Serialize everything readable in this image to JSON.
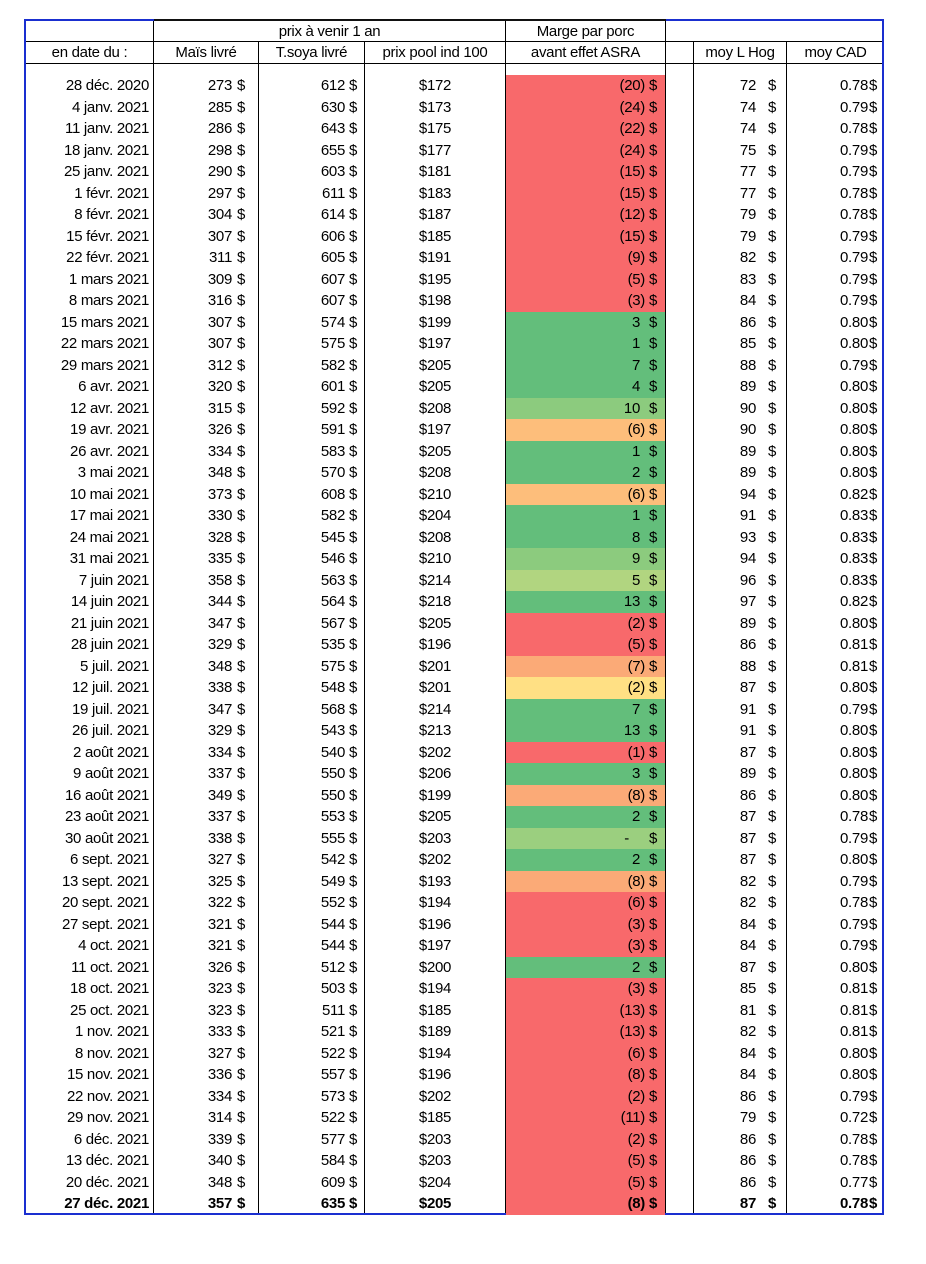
{
  "header": {
    "group_label": "prix à venir 1 an",
    "marge_line1": "Marge par porc",
    "marge_line2": "avant effet ASRA",
    "col_date": "en date du :",
    "col_mais": "Maïs livré",
    "col_soya": "T.soya livré",
    "col_pool": "prix pool ind 100",
    "col_hog": "moy L Hog",
    "col_cad": "moy CAD"
  },
  "colors": {
    "r": "#F8696B",
    "g": "#63BE7B",
    "lg": "#8CCB7E",
    "yg": "#B1D580",
    "o": "#FDBE7B",
    "po": "#FBAA77",
    "y": "#FFE084",
    "dg": "#9BCF7F"
  },
  "rows": [
    [
      "28 déc. 2020",
      "273",
      "612",
      "$172",
      "(20)",
      "r",
      "72",
      "0.78"
    ],
    [
      "4 janv. 2021",
      "285",
      "630",
      "$173",
      "(24)",
      "r",
      "74",
      "0.79"
    ],
    [
      "11 janv. 2021",
      "286",
      "643",
      "$175",
      "(22)",
      "r",
      "74",
      "0.78"
    ],
    [
      "18 janv. 2021",
      "298",
      "655",
      "$177",
      "(24)",
      "r",
      "75",
      "0.79"
    ],
    [
      "25 janv. 2021",
      "290",
      "603",
      "$181",
      "(15)",
      "r",
      "77",
      "0.79"
    ],
    [
      "1 févr. 2021",
      "297",
      "611",
      "$183",
      "(15)",
      "r",
      "77",
      "0.78"
    ],
    [
      "8 févr. 2021",
      "304",
      "614",
      "$187",
      "(12)",
      "r",
      "79",
      "0.78"
    ],
    [
      "15 févr. 2021",
      "307",
      "606",
      "$185",
      "(15)",
      "r",
      "79",
      "0.79"
    ],
    [
      "22 févr. 2021",
      "311",
      "605",
      "$191",
      "(9)",
      "r",
      "82",
      "0.79"
    ],
    [
      "1 mars 2021",
      "309",
      "607",
      "$195",
      "(5)",
      "r",
      "83",
      "0.79"
    ],
    [
      "8 mars 2021",
      "316",
      "607",
      "$198",
      "(3)",
      "r",
      "84",
      "0.79"
    ],
    [
      "15 mars 2021",
      "307",
      "574",
      "$199",
      "3",
      "g",
      "86",
      "0.80"
    ],
    [
      "22 mars 2021",
      "307",
      "575",
      "$197",
      "1",
      "g",
      "85",
      "0.80"
    ],
    [
      "29 mars 2021",
      "312",
      "582",
      "$205",
      "7",
      "g",
      "88",
      "0.79"
    ],
    [
      "6 avr. 2021",
      "320",
      "601",
      "$205",
      "4",
      "g",
      "89",
      "0.80"
    ],
    [
      "12 avr. 2021",
      "315",
      "592",
      "$208",
      "10",
      "lg",
      "90",
      "0.80"
    ],
    [
      "19 avr. 2021",
      "326",
      "591",
      "$197",
      "(6)",
      "o",
      "90",
      "0.80"
    ],
    [
      "26 avr. 2021",
      "334",
      "583",
      "$205",
      "1",
      "g",
      "89",
      "0.80"
    ],
    [
      "3 mai 2021",
      "348",
      "570",
      "$208",
      "2",
      "g",
      "89",
      "0.80"
    ],
    [
      "10 mai 2021",
      "373",
      "608",
      "$210",
      "(6)",
      "o",
      "94",
      "0.82"
    ],
    [
      "17 mai 2021",
      "330",
      "582",
      "$204",
      "1",
      "g",
      "91",
      "0.83"
    ],
    [
      "24 mai 2021",
      "328",
      "545",
      "$208",
      "8",
      "g",
      "93",
      "0.83"
    ],
    [
      "31 mai 2021",
      "335",
      "546",
      "$210",
      "9",
      "lg",
      "94",
      "0.83"
    ],
    [
      "7 juin 2021",
      "358",
      "563",
      "$214",
      "5",
      "yg",
      "96",
      "0.83"
    ],
    [
      "14 juin 2021",
      "344",
      "564",
      "$218",
      "13",
      "g",
      "97",
      "0.82"
    ],
    [
      "21 juin 2021",
      "347",
      "567",
      "$205",
      "(2)",
      "r",
      "89",
      "0.80"
    ],
    [
      "28 juin 2021",
      "329",
      "535",
      "$196",
      "(5)",
      "r",
      "86",
      "0.81"
    ],
    [
      "5 juil. 2021",
      "348",
      "575",
      "$201",
      "(7)",
      "po",
      "88",
      "0.81"
    ],
    [
      "12 juil. 2021",
      "338",
      "548",
      "$201",
      "(2)",
      "y",
      "87",
      "0.80"
    ],
    [
      "19 juil. 2021",
      "347",
      "568",
      "$214",
      "7",
      "g",
      "91",
      "0.79"
    ],
    [
      "26 juil. 2021",
      "329",
      "543",
      "$213",
      "13",
      "g",
      "91",
      "0.80"
    ],
    [
      "2 août 2021",
      "334",
      "540",
      "$202",
      "(1)",
      "r",
      "87",
      "0.80"
    ],
    [
      "9 août 2021",
      "337",
      "550",
      "$206",
      "3",
      "g",
      "89",
      "0.80"
    ],
    [
      "16 août 2021",
      "349",
      "550",
      "$199",
      "(8)",
      "po",
      "86",
      "0.80"
    ],
    [
      "23 août 2021",
      "337",
      "553",
      "$205",
      "2",
      "g",
      "87",
      "0.78"
    ],
    [
      "30 août 2021",
      "338",
      "555",
      "$203",
      "-",
      "dg",
      "87",
      "0.79"
    ],
    [
      "6 sept. 2021",
      "327",
      "542",
      "$202",
      "2",
      "g",
      "87",
      "0.80"
    ],
    [
      "13 sept. 2021",
      "325",
      "549",
      "$193",
      "(8)",
      "po",
      "82",
      "0.79"
    ],
    [
      "20 sept. 2021",
      "322",
      "552",
      "$194",
      "(6)",
      "r",
      "82",
      "0.78"
    ],
    [
      "27 sept. 2021",
      "321",
      "544",
      "$196",
      "(3)",
      "r",
      "84",
      "0.79"
    ],
    [
      "4 oct. 2021",
      "321",
      "544",
      "$197",
      "(3)",
      "r",
      "84",
      "0.79"
    ],
    [
      "11 oct. 2021",
      "326",
      "512",
      "$200",
      "2",
      "g",
      "87",
      "0.80"
    ],
    [
      "18 oct. 2021",
      "323",
      "503",
      "$194",
      "(3)",
      "r",
      "85",
      "0.81"
    ],
    [
      "25 oct. 2021",
      "323",
      "511",
      "$185",
      "(13)",
      "r",
      "81",
      "0.81"
    ],
    [
      "1 nov. 2021",
      "333",
      "521",
      "$189",
      "(13)",
      "r",
      "82",
      "0.81"
    ],
    [
      "8 nov. 2021",
      "327",
      "522",
      "$194",
      "(6)",
      "r",
      "84",
      "0.80"
    ],
    [
      "15 nov. 2021",
      "336",
      "557",
      "$196",
      "(8)",
      "r",
      "84",
      "0.80"
    ],
    [
      "22 nov. 2021",
      "334",
      "573",
      "$202",
      "(2)",
      "r",
      "86",
      "0.79"
    ],
    [
      "29 nov. 2021",
      "314",
      "522",
      "$185",
      "(11)",
      "r",
      "79",
      "0.72"
    ],
    [
      "6 déc. 2021",
      "339",
      "577",
      "$203",
      "(2)",
      "r",
      "86",
      "0.78"
    ],
    [
      "13 déc. 2021",
      "340",
      "584",
      "$203",
      "(5)",
      "r",
      "86",
      "0.78"
    ],
    [
      "20 déc. 2021",
      "348",
      "609",
      "$204",
      "(5)",
      "r",
      "86",
      "0.77"
    ],
    [
      "27 déc. 2021",
      "357",
      "635",
      "$205",
      "(8)",
      "r",
      "87",
      "0.78"
    ]
  ],
  "currency_symbol": "$"
}
